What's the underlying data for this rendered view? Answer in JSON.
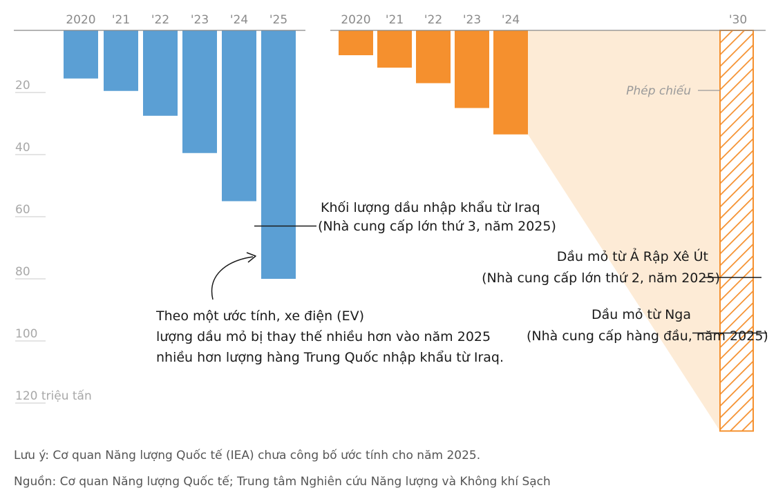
{
  "chart_data": {
    "type": "bar",
    "y_unit_label": "120 triệu tấn",
    "yticks": [
      20,
      40,
      60,
      80,
      100,
      120
    ],
    "ylim": [
      0,
      125
    ],
    "orientation": "downward",
    "colors": {
      "ev": "#5b9fd4",
      "iraq": "#f5902e",
      "projection_fill": "#fdebd6",
      "projection_hatch": "#f5902e"
    },
    "series": [
      {
        "group": "ev",
        "categories": [
          "2020",
          "'21",
          "'22",
          "'23",
          "'24",
          "'25"
        ],
        "values": [
          15.5,
          19.5,
          27.5,
          39.5,
          55,
          80
        ]
      },
      {
        "group": "iraq",
        "categories": [
          "2020",
          "'21",
          "'22",
          "'23",
          "'24"
        ],
        "values": [
          8,
          12,
          17,
          25,
          33.5
        ]
      }
    ],
    "projection": {
      "category": "'30",
      "value": 129,
      "label": "Phép chiếu"
    },
    "annotations": [
      {
        "id": "iraq",
        "lines": [
          "Khối lượng dầu nhập khẩu từ Iraq",
          "(Nhà cung cấp lớn thứ 3, năm 2025)"
        ],
        "value": 63
      },
      {
        "id": "saudi",
        "lines": [
          "Dầu mỏ từ Ả Rập Xê Út",
          "(Nhà cung cấp lớn thứ 2, năm 2025)"
        ],
        "value": 80
      },
      {
        "id": "russia",
        "lines": [
          "Dầu mỏ từ Nga",
          "(Nhà cung cấp hàng đầu, năm 2025)"
        ],
        "value": 95
      },
      {
        "id": "ev",
        "lines": [
          "Theo một ước tính, xe điện (EV)",
          "lượng dầu mỏ bị thay thế nhiều hơn vào năm 2025",
          "nhiều hơn lượng hàng Trung Quốc nhập khẩu từ Iraq."
        ]
      }
    ]
  },
  "footer": {
    "note": "Lưu ý: Cơ quan Năng lượng Quốc tế (IEA) chưa công bố ước tính cho năm 2025.",
    "source": "Nguồn: Cơ quan Năng lượng Quốc tế; Trung tâm Nghiên cứu Năng lượng và Không khí Sạch"
  }
}
